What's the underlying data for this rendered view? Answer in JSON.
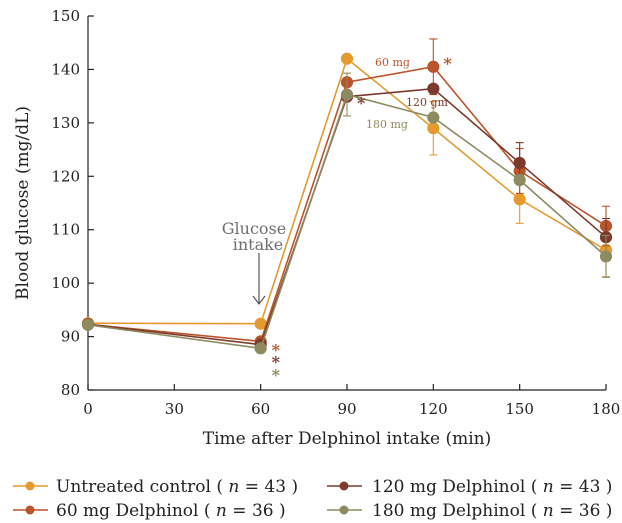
{
  "chart_data": {
    "type": "line",
    "xlabel": "Time after Delphinol intake (min)",
    "ylabel": "Blood glucose (mg/dL)",
    "x": [
      0,
      30,
      60,
      90,
      120,
      150,
      180
    ],
    "xlim": [
      0,
      180
    ],
    "ylim": [
      80,
      150
    ],
    "x_ticks": [
      "0",
      "30",
      "60",
      "90",
      "120",
      "150",
      "180"
    ],
    "y_ticks": [
      "80",
      "90",
      "100",
      "110",
      "120",
      "130",
      "140",
      "150"
    ],
    "grid": false,
    "legend_position": "bottom",
    "series": [
      {
        "name": "Untreated control",
        "n_label": "43",
        "color": "#e59a2f",
        "points": [
          {
            "x": 0,
            "y": 92.5
          },
          {
            "x": 60,
            "y": 92.4
          },
          {
            "x": 90,
            "y": 142
          },
          {
            "x": 120,
            "y": 129,
            "err": 5
          },
          {
            "x": 150,
            "y": 115.7,
            "err": 4.5
          },
          {
            "x": 180,
            "y": 106.2,
            "err": 5
          }
        ]
      },
      {
        "name": "60 mg Delphinol",
        "n_label": "36",
        "color": "#b9542b",
        "points": [
          {
            "x": 0,
            "y": 92.3
          },
          {
            "x": 60,
            "y": 89.1
          },
          {
            "x": 90,
            "y": 137.6
          },
          {
            "x": 120,
            "y": 140.5,
            "err": 5.2
          },
          {
            "x": 150,
            "y": 121,
            "err": 4.2
          },
          {
            "x": 180,
            "y": 110.7,
            "err": 3.7
          }
        ]
      },
      {
        "name": "120 mg Delphinol",
        "n_label": "43",
        "color": "#7b3a2c",
        "points": [
          {
            "x": 0,
            "y": 92.3
          },
          {
            "x": 60,
            "y": 88.5
          },
          {
            "x": 90,
            "y": 134.9
          },
          {
            "x": 120,
            "y": 136.4
          },
          {
            "x": 150,
            "y": 122.5,
            "err": 3.8
          },
          {
            "x": 180,
            "y": 108.6,
            "err": 3.5
          }
        ]
      },
      {
        "name": "180 mg Delphinol",
        "n_label": "36",
        "color": "#8d8a5f",
        "points": [
          {
            "x": 0,
            "y": 92.2
          },
          {
            "x": 60,
            "y": 87.8
          },
          {
            "x": 90,
            "y": 135.3,
            "err": 4
          },
          {
            "x": 120,
            "y": 131
          },
          {
            "x": 150,
            "y": 119.3
          },
          {
            "x": 180,
            "y": 105,
            "err": 3.9
          }
        ]
      }
    ],
    "annotations": {
      "glucose_intake_line1": "Glucose",
      "glucose_intake_line2": "intake",
      "label_60": "60 mg",
      "label_120": "120 gm",
      "label_180": "180 mg",
      "stars": [
        {
          "x": 120,
          "y": 140.5,
          "text": "*",
          "color": "#b9542b"
        },
        {
          "x": 90,
          "y": 134.9,
          "text": "*",
          "color": "#7b3a2c"
        },
        {
          "x": 60,
          "y": 89.1,
          "text": "*",
          "color": "#b9542b"
        },
        {
          "x": 60,
          "y": 88.5,
          "text": "*",
          "color": "#7b3a2c"
        },
        {
          "x": 60,
          "y": 87.8,
          "text": "*",
          "color": "#8d8a5f"
        }
      ]
    }
  }
}
